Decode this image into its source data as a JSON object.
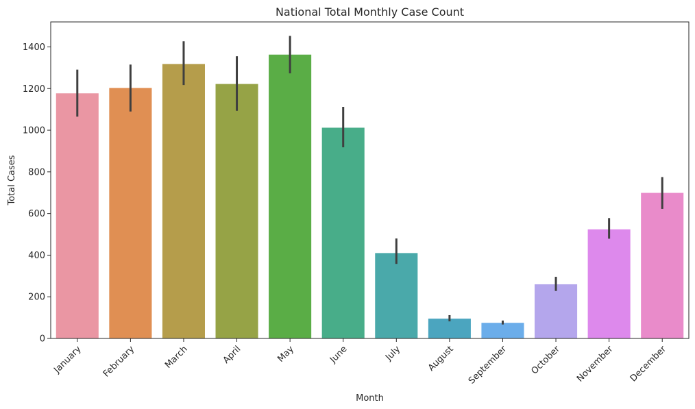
{
  "chart_data": {
    "type": "bar",
    "title": "National Total Monthly Case Count",
    "xlabel": "Month",
    "ylabel": "Total Cases",
    "ylim": [
      0,
      1520
    ],
    "yticks": [
      0,
      200,
      400,
      600,
      800,
      1000,
      1200,
      1400
    ],
    "categories": [
      "January",
      "February",
      "March",
      "April",
      "May",
      "June",
      "July",
      "August",
      "September",
      "October",
      "November",
      "December"
    ],
    "values": [
      1177,
      1203,
      1318,
      1222,
      1363,
      1012,
      410,
      95,
      75,
      260,
      524,
      699
    ],
    "error_low": [
      1065,
      1090,
      1217,
      1093,
      1273,
      918,
      358,
      82,
      67,
      228,
      479,
      622
    ],
    "error_high": [
      1291,
      1315,
      1427,
      1355,
      1453,
      1112,
      480,
      112,
      86,
      296,
      578,
      775
    ],
    "colors": [
      "#ea96a3",
      "#e08f53",
      "#b59d4b",
      "#96a346",
      "#5aad46",
      "#48ad89",
      "#4aa9aa",
      "#4ba5bf",
      "#6badea",
      "#b4a6ec",
      "#dd89ec",
      "#e98bca"
    ],
    "grid": false,
    "legend": "none"
  }
}
